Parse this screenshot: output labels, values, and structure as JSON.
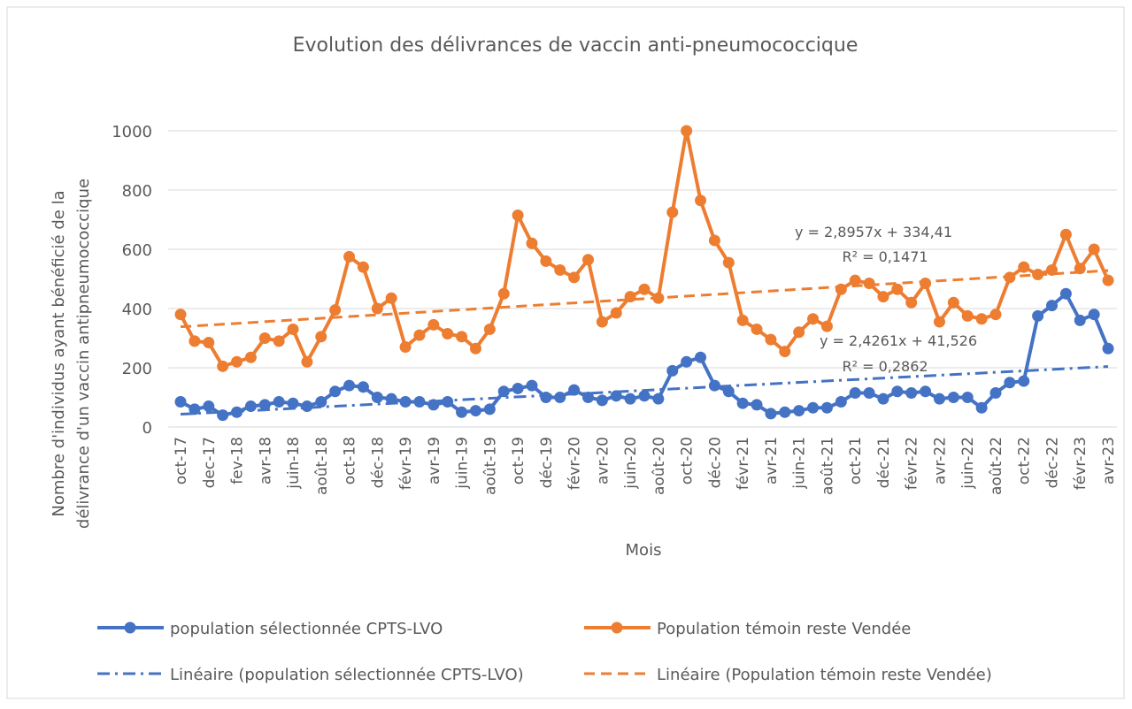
{
  "chart_data": {
    "type": "line",
    "title": "Evolution des délivrances de vaccin anti-pneumococcique",
    "x_label": "Mois",
    "y_label": [
      "Nombre d'individus ayant bénéficié de la",
      "délivrance d'un vaccin antipneumococcique"
    ],
    "categories": [
      "oct-17",
      null,
      "dec-17",
      null,
      "fev-18",
      null,
      "avr-18",
      null,
      "juin-18",
      null,
      "août-18",
      null,
      "oct-18",
      null,
      "déc-18",
      null,
      "févr-19",
      null,
      "avr-19",
      null,
      "juin-19",
      null,
      "août-19",
      null,
      "oct-19",
      null,
      "déc-19",
      null,
      "févr-20",
      null,
      "avr-20",
      null,
      "juin-20",
      null,
      "août-20",
      null,
      "oct-20",
      null,
      "déc-20",
      null,
      "févr-21",
      null,
      "avr-21",
      null,
      "juin-21",
      null,
      "août-21",
      null,
      "oct-21",
      null,
      "déc-21",
      null,
      "févr-22",
      null,
      "avr-22",
      null,
      "juin-22",
      null,
      "août-22",
      null,
      "oct-22",
      null,
      "déc-22",
      null,
      "févr-23",
      null,
      "avr-23"
    ],
    "series": [
      {
        "name": "population sélectionnée CPTS-LVO",
        "color": "#4472c4",
        "values": [
          85,
          60,
          70,
          40,
          50,
          70,
          75,
          85,
          80,
          70,
          85,
          120,
          140,
          135,
          100,
          95,
          85,
          85,
          75,
          85,
          50,
          55,
          60,
          120,
          130,
          140,
          100,
          100,
          125,
          100,
          90,
          105,
          95,
          105,
          95,
          190,
          220,
          235,
          140,
          120,
          80,
          75,
          45,
          50,
          55,
          65,
          65,
          85,
          115,
          115,
          95,
          120,
          115,
          120,
          95,
          100,
          100,
          65,
          115,
          150,
          155,
          375,
          410,
          450,
          360,
          380,
          265
        ],
        "trendline": {
          "name": "Linéaire (population sélectionnée CPTS-LVO)",
          "equation": "y = 2,4261x + 41,526",
          "r2": "R² = 0,2862"
        }
      },
      {
        "name": "Population témoin reste Vendée",
        "color": "#ed7d31",
        "values": [
          380,
          290,
          285,
          205,
          220,
          235,
          300,
          290,
          330,
          220,
          305,
          395,
          575,
          540,
          400,
          435,
          270,
          310,
          345,
          315,
          305,
          265,
          330,
          450,
          715,
          620,
          560,
          530,
          505,
          565,
          355,
          385,
          440,
          465,
          435,
          725,
          1000,
          765,
          630,
          555,
          360,
          330,
          295,
          255,
          320,
          365,
          340,
          465,
          495,
          485,
          440,
          465,
          420,
          485,
          355,
          420,
          375,
          365,
          380,
          505,
          540,
          515,
          530,
          650,
          535,
          600,
          495
        ],
        "trendline": {
          "name": "Linéaire (Population témoin reste Vendée)",
          "equation": "y = 2,8957x + 334,41",
          "r2": "R² = 0,1471"
        }
      }
    ],
    "ylim": [
      0,
      1000
    ],
    "yticks": [
      0,
      200,
      400,
      600,
      800,
      1000
    ],
    "grid": true
  }
}
